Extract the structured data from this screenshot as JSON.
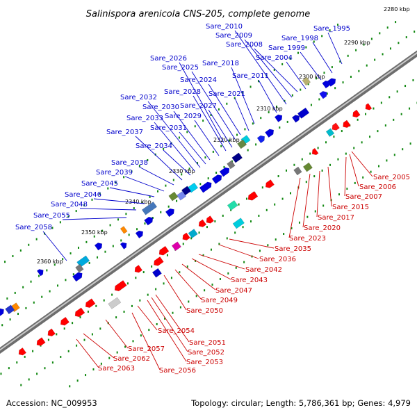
{
  "title": "Salinispora arenicola CNS-205, complete genome",
  "accession": "Accession: NC_009953",
  "summary": "Topology: circular; Length: 5,786,361 bp; Genes: 4,979",
  "kbp_ticks": [
    "2280 kbp",
    "2290 kbp",
    "2300 kbp",
    "2310 kbp",
    "2320 kbp",
    "2330 kbp",
    "2340 kbp",
    "2350 kbp",
    "2360 kbp"
  ],
  "forward_labels": [
    "Sare_1995",
    "Sare_1998",
    "Sare_1999",
    "Sare_2004",
    "Sare_2008",
    "Sare_2009",
    "Sare_2010",
    "Sare_2011",
    "Sare_2018",
    "Sare_2021",
    "Sare_2024",
    "Sare_2025",
    "Sare_2026",
    "Sare_2027",
    "Sare_2028",
    "Sare_2029",
    "Sare_2030",
    "Sare_2031",
    "Sare_2032",
    "Sare_2033",
    "Sare_2034",
    "Sare_2037",
    "Sare_2038",
    "Sare_2039",
    "Sare_2045",
    "Sare_2046",
    "Sare_2048",
    "Sare_2055",
    "Sare_2058"
  ],
  "reverse_labels": [
    "Sare_2005",
    "Sare_2006",
    "Sare_2007",
    "Sare_2015",
    "Sare_2017",
    "Sare_2020",
    "Sare_2023",
    "Sare_2035",
    "Sare_2036",
    "Sare_2042",
    "Sare_2043",
    "Sare_2047",
    "Sare_2049",
    "Sare_2050",
    "Sare_2051",
    "Sare_2052",
    "Sare_2053",
    "Sare_2054",
    "Sare_2056",
    "Sare_2057",
    "Sare_2062",
    "Sare_2063"
  ],
  "colors": {
    "forward": "#0000cc",
    "reverse": "#cc0000",
    "backbone": "#808080",
    "dots": "#118811"
  }
}
